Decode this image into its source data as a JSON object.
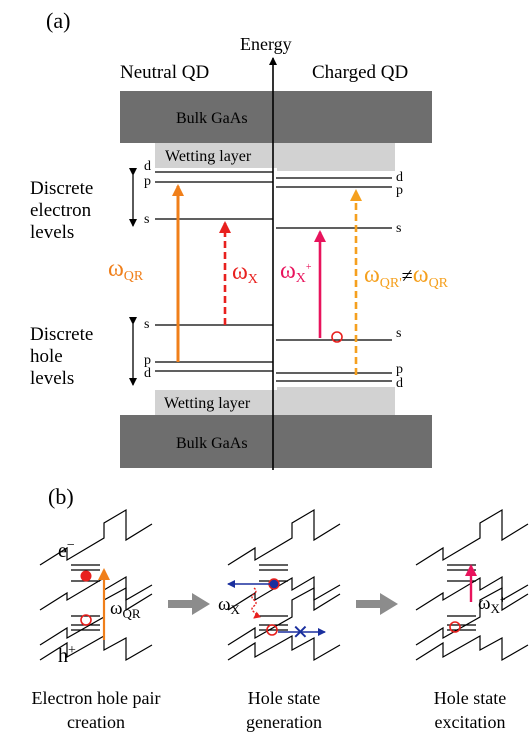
{
  "panel_a": {
    "label": "(a)",
    "axis_label": "Energy",
    "left_title": "Neutral QD",
    "right_title": "Charged QD",
    "bulk_top": "Bulk GaAs",
    "bulk_bottom": "Bulk GaAs",
    "wetting_top": "Wetting layer",
    "wetting_bottom": "Wetting layer",
    "electron_group": [
      "Discrete",
      "electron",
      "levels"
    ],
    "hole_group": [
      "Discrete",
      "hole",
      "levels"
    ],
    "level_labels": {
      "d": "d",
      "p": "p",
      "s": "s"
    },
    "transitions": {
      "omega_qr": {
        "symbol": "ω",
        "sub": "QR",
        "color": "#f07f1a"
      },
      "omega_x": {
        "symbol": "ω",
        "sub": "X",
        "color": "#e8201e"
      },
      "omega_x_plus": {
        "symbol": "ω",
        "sub": "X",
        "sup": "+",
        "color": "#e8135c"
      },
      "omega_qr_prime": {
        "symbol": "ω",
        "sub": "QR'",
        "neq": "≠",
        "rhs_sub": "QR",
        "color": "#f5a01e"
      }
    }
  },
  "panel_b": {
    "label": "(b)",
    "electron": "e",
    "electron_sup": "−",
    "hole": "h",
    "hole_sup": "+",
    "step1_omega": {
      "symbol": "ω",
      "sub": "QR"
    },
    "step2_omega": {
      "symbol": "ω",
      "sub": "X"
    },
    "step3_omega": {
      "symbol": "ω",
      "sub": "X",
      "sup": "+"
    },
    "captions": [
      [
        "Electron hole pair",
        "creation"
      ],
      [
        "Hole state",
        "generation"
      ],
      [
        "Hole state",
        "excitation"
      ]
    ]
  },
  "colors": {
    "bulk": "#6e6e6e",
    "wetting": "#d2d2d2",
    "arrow_gray": "#8c8c8c",
    "blue": "#1a2f9e",
    "red": "#e8201e"
  }
}
